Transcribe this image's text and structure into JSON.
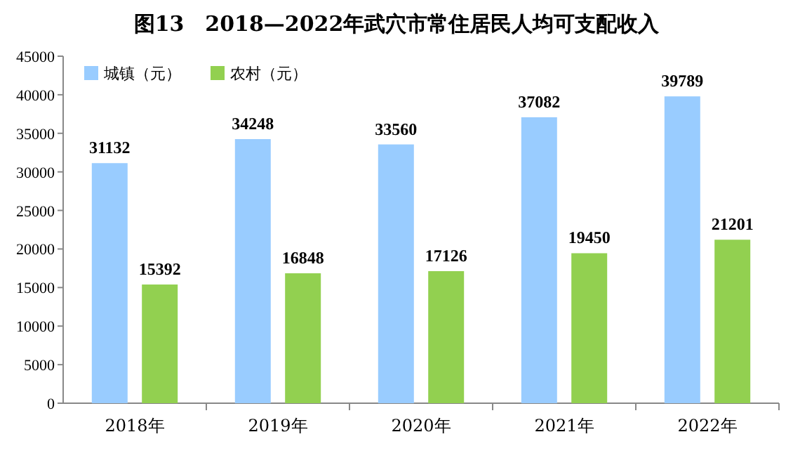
{
  "chart_data": {
    "type": "bar",
    "title": "图13　2018—2022年武穴市常住居民人均可支配收入",
    "categories": [
      "2018年",
      "2019年",
      "2020年",
      "2021年",
      "2022年"
    ],
    "series": [
      {
        "name": "城镇（元）",
        "color": "#99ccff",
        "values": [
          31132,
          34248,
          33560,
          37082,
          39789
        ]
      },
      {
        "name": "农村（元）",
        "color": "#92d050",
        "values": [
          15392,
          16848,
          17126,
          19450,
          21201
        ]
      }
    ],
    "ylim": [
      0,
      45000
    ],
    "yticks": [
      0,
      5000,
      10000,
      15000,
      20000,
      25000,
      30000,
      35000,
      40000,
      45000
    ],
    "grid": false,
    "legend": "top left",
    "data_labels": true
  }
}
